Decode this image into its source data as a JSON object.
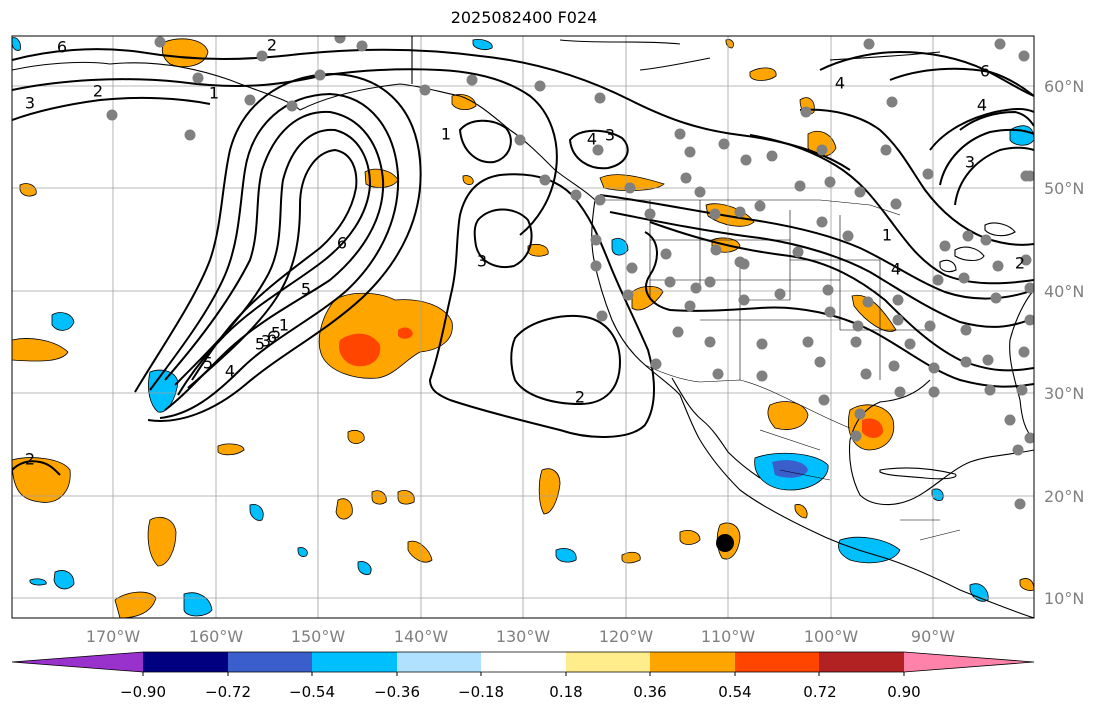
{
  "title": "2025082400 F024",
  "latitude_labels": [
    "60°N",
    "50°N",
    "40°N",
    "30°N",
    "20°N",
    "10°N"
  ],
  "longitude_labels": [
    "170°W",
    "160°W",
    "150°W",
    "140°W",
    "130°W",
    "120°W",
    "110°W",
    "100°W",
    "90°W"
  ],
  "colorbar": {
    "tick_labels": [
      "−0.90",
      "−0.72",
      "−0.54",
      "−0.36",
      "−0.18",
      "0.18",
      "0.36",
      "0.54",
      "0.72",
      "0.90"
    ],
    "colors": [
      "#9932cc",
      "#000080",
      "#3a5fcd",
      "#00bfff",
      "#b0e2ff",
      "#ffffff",
      "#ffec8b",
      "#ffa500",
      "#ff4500",
      "#b22222",
      "#ff82ab"
    ]
  },
  "contour_labels": [
    "6",
    "2",
    "3",
    "2",
    "1",
    "1",
    "4",
    "4",
    "3",
    "6",
    "4",
    "3",
    "2",
    "1",
    "4",
    "5",
    "6",
    "3",
    "5",
    "5",
    "6",
    "5",
    "4",
    "3",
    "2",
    "1",
    "2"
  ],
  "fill_colors": {
    "orange": "#ffa500",
    "red_orange": "#ff4500",
    "light_yellow": "#ffec8b",
    "sky_blue": "#00bfff",
    "royal_blue": "#3a5fcd",
    "light_blue": "#b0e2ff",
    "station_gray": "#808080"
  }
}
